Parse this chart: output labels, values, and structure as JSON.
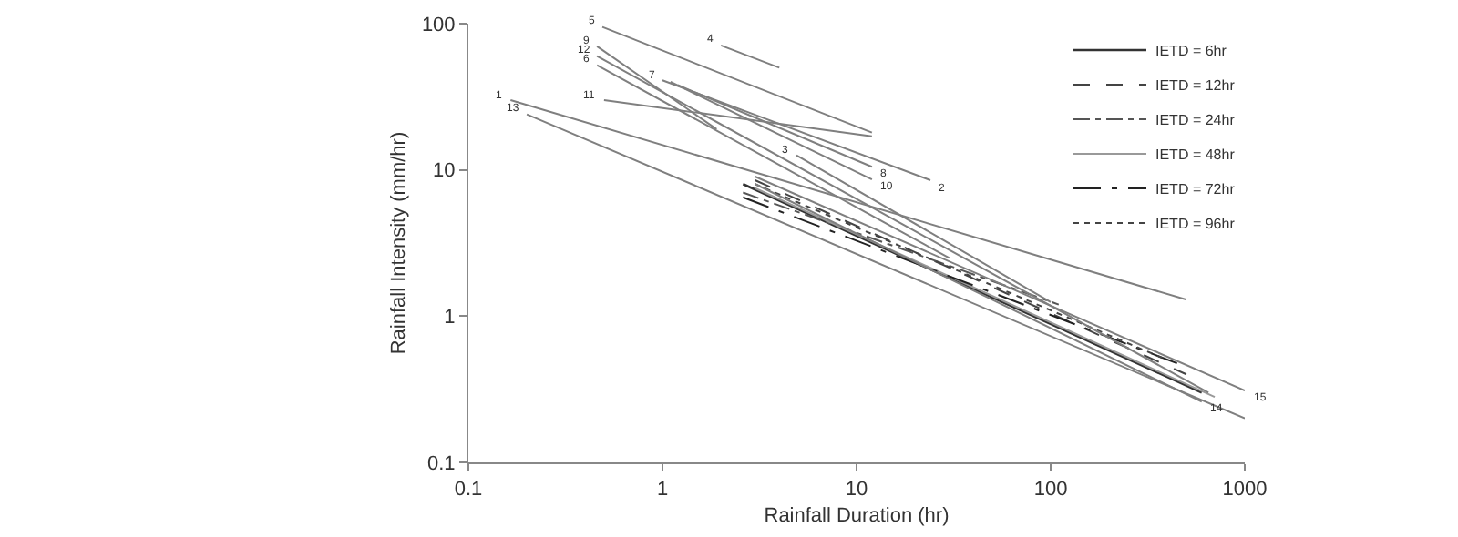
{
  "chart_data": {
    "type": "line",
    "xlabel": "Rainfall Duration (hr)",
    "ylabel": "Rainfall Intensity (mm/hr)",
    "xlim": [
      0.1,
      1000
    ],
    "ylim": [
      0.1,
      100
    ],
    "xticks": [
      0.1,
      1,
      10,
      100,
      1000
    ],
    "yticks": [
      0.1,
      1,
      10,
      100
    ],
    "log": "xy",
    "legend": "top right",
    "marker": "none",
    "series": [
      {
        "name": "IETD = 6hr",
        "color": "#333333",
        "line_style": "solid",
        "x": [
          2.6,
          600
        ],
        "values": [
          8,
          0.3
        ]
      },
      {
        "name": "IETD = 12hr",
        "color": "#444444",
        "line_style": "dashed",
        "x": [
          3,
          500
        ],
        "values": [
          8.5,
          0.4
        ]
      },
      {
        "name": "IETD = 24hr",
        "color": "#555555",
        "line_style": "dashdot",
        "x": [
          2.6,
          110
        ],
        "values": [
          7,
          1.2
        ]
      },
      {
        "name": "IETD = 48hr",
        "color": "#999999",
        "line_style": "solid",
        "x": [
          3,
          700
        ],
        "values": [
          7.5,
          0.28
        ]
      },
      {
        "name": "IETD = 72hr",
        "color": "#222222",
        "line_style": "longdashdot",
        "x": [
          2.6,
          500
        ],
        "values": [
          6.5,
          0.45
        ]
      },
      {
        "name": "IETD = 96hr",
        "color": "#444444",
        "line_style": "dotted",
        "x": [
          3,
          400
        ],
        "values": [
          8,
          0.5
        ]
      },
      {
        "color": "#7f7f7f",
        "line_style": "solid",
        "x": [
          0.165,
          497
        ],
        "values": [
          30,
          1.3
        ]
      },
      {
        "color": "#7f7f7f",
        "line_style": "solid",
        "x": [
          1.0,
          24
        ],
        "values": [
          41,
          8.5
        ]
      },
      {
        "color": "#7f7f7f",
        "line_style": "solid",
        "x": [
          4.9,
          100
        ],
        "values": [
          12.6,
          1.25
        ]
      },
      {
        "color": "#7f7f7f",
        "line_style": "solid",
        "x": [
          2,
          4
        ],
        "values": [
          71,
          50
        ]
      },
      {
        "color": "#7f7f7f",
        "line_style": "solid",
        "x": [
          0.49,
          12
        ],
        "values": [
          95,
          18
        ]
      },
      {
        "color": "#7f7f7f",
        "line_style": "solid",
        "x": [
          0.46,
          30
        ],
        "values": [
          52,
          2.5
        ]
      },
      {
        "color": "#7f7f7f",
        "line_style": "solid",
        "x": [
          1.2,
          12
        ],
        "values": [
          38,
          10.5
        ]
      },
      {
        "color": "#7f7f7f",
        "line_style": "solid",
        "x": [
          0.46,
          1.9
        ],
        "values": [
          70,
          19
        ]
      },
      {
        "color": "#7f7f7f",
        "line_style": "solid",
        "x": [
          1.1,
          12
        ],
        "values": [
          40,
          8.6
        ]
      },
      {
        "color": "#7f7f7f",
        "line_style": "solid",
        "x": [
          0.5,
          12
        ],
        "values": [
          30,
          17
        ]
      },
      {
        "color": "#7f7f7f",
        "line_style": "solid",
        "x": [
          0.46,
          650
        ],
        "values": [
          60,
          0.3
        ]
      },
      {
        "color": "#7f7f7f",
        "line_style": "solid",
        "x": [
          0.2,
          1000
        ],
        "values": [
          24,
          0.2
        ]
      },
      {
        "color": "#7f7f7f",
        "line_style": "solid",
        "x": [
          3,
          600
        ],
        "values": [
          8,
          0.26
        ]
      },
      {
        "color": "#7f7f7f",
        "line_style": "solid",
        "x": [
          3,
          1000
        ],
        "values": [
          9,
          0.31
        ]
      }
    ],
    "annotations": [
      {
        "text": "1",
        "x": 0.165,
        "y": 30
      },
      {
        "text": "2",
        "x": 24,
        "y": 8.5
      },
      {
        "text": "3",
        "x": 4.9,
        "y": 12.6
      },
      {
        "text": "4",
        "x": 2,
        "y": 71
      },
      {
        "text": "5",
        "x": 0.49,
        "y": 95
      },
      {
        "text": "6",
        "x": 0.46,
        "y": 52
      },
      {
        "text": "7",
        "x": 1.0,
        "y": 41
      },
      {
        "text": "8",
        "x": 12,
        "y": 10.5
      },
      {
        "text": "9",
        "x": 0.46,
        "y": 70
      },
      {
        "text": "10",
        "x": 12,
        "y": 8.6
      },
      {
        "text": "11",
        "x": 0.5,
        "y": 30
      },
      {
        "text": "12",
        "x": 0.46,
        "y": 60
      },
      {
        "text": "13",
        "x": 0.2,
        "y": 24
      },
      {
        "text": "14",
        "x": 600,
        "y": 0.26
      },
      {
        "text": "15",
        "x": 1000,
        "y": 0.31
      }
    ]
  }
}
